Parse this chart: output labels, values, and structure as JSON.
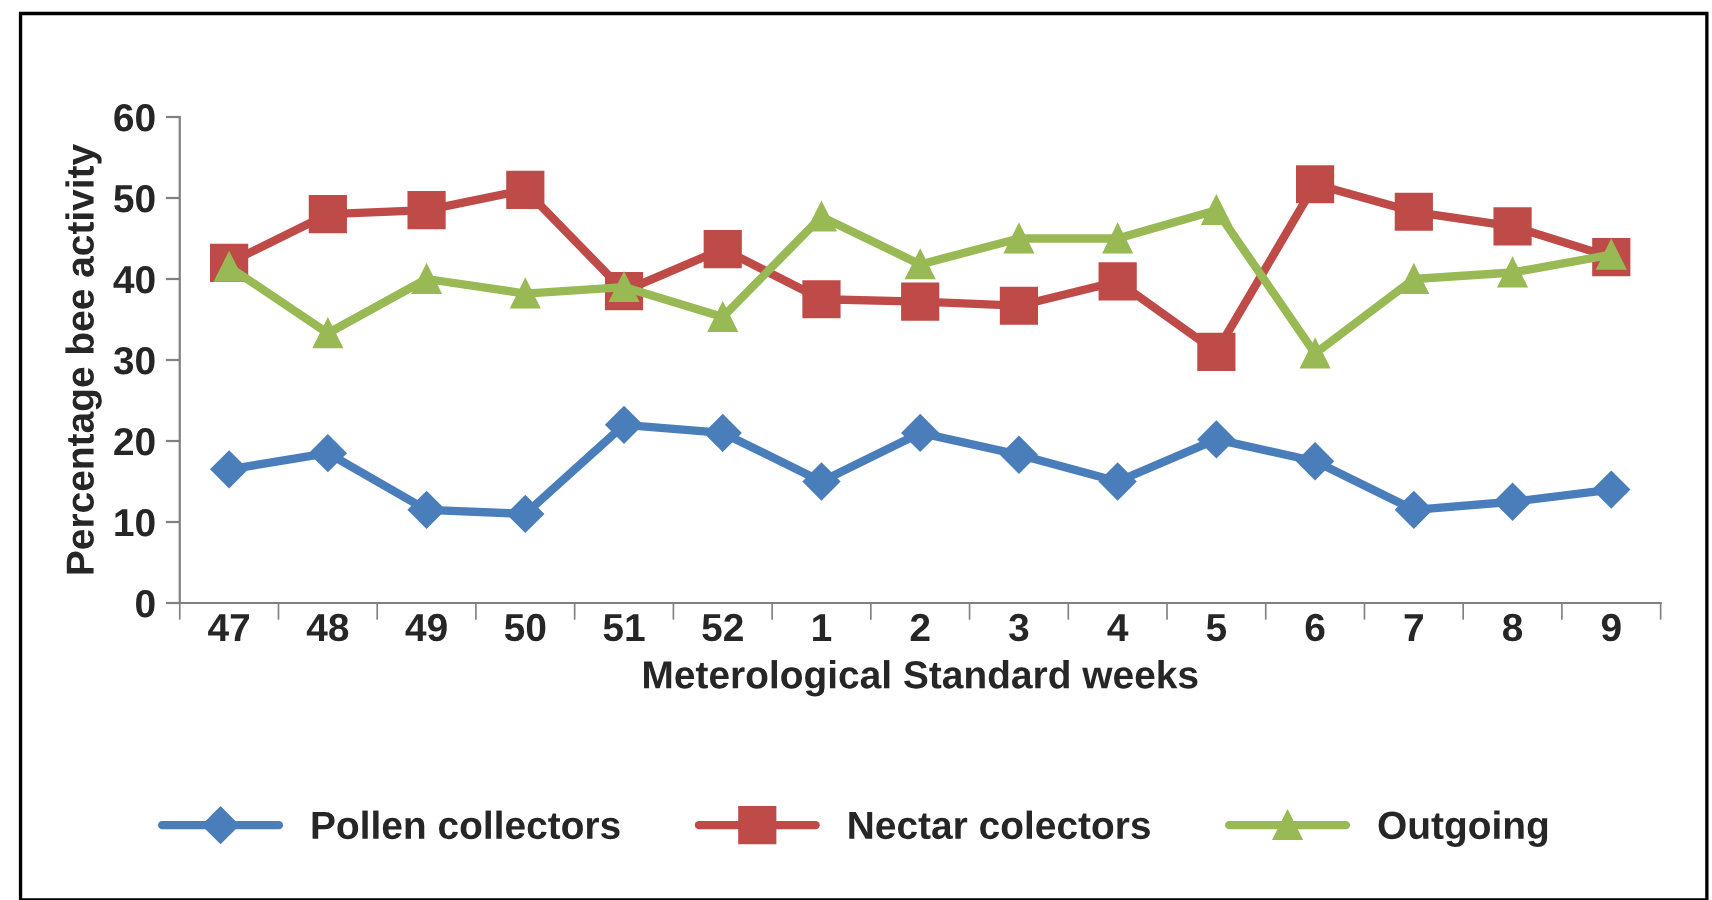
{
  "chart_data": {
    "type": "line",
    "xlabel": "Meterological Standard weeks",
    "ylabel": "Percentage bee activity",
    "categories": [
      "47",
      "48",
      "49",
      "50",
      "51",
      "52",
      "1",
      "2",
      "3",
      "4",
      "5",
      "6",
      "7",
      "8",
      "9"
    ],
    "series": [
      {
        "name": "Pollen collectors",
        "color": "#4a7ebb",
        "marker": "diamond",
        "values": [
          16.5,
          18.5,
          11.5,
          11,
          22,
          21,
          15,
          21,
          18.3,
          15,
          20.2,
          17.5,
          11.5,
          12.5,
          14
        ]
      },
      {
        "name": "Nectar colectors",
        "color": "#be4b48",
        "marker": "square",
        "values": [
          42,
          48,
          48.5,
          51,
          38.5,
          43.7,
          37.5,
          37.2,
          36.7,
          39.7,
          31,
          51.7,
          48.3,
          46.5,
          42.7
        ]
      },
      {
        "name": "Outgoing",
        "color": "#98b954",
        "marker": "triangle",
        "values": [
          41.5,
          33.3,
          40,
          38.2,
          39,
          35.3,
          47.7,
          41.8,
          45,
          45,
          48.5,
          30.8,
          40,
          40.8,
          43
        ]
      }
    ],
    "ylim": [
      0,
      60
    ],
    "yticks": [
      0,
      10,
      20,
      30,
      40,
      50,
      60
    ],
    "legend": "bottom",
    "grid": false
  }
}
